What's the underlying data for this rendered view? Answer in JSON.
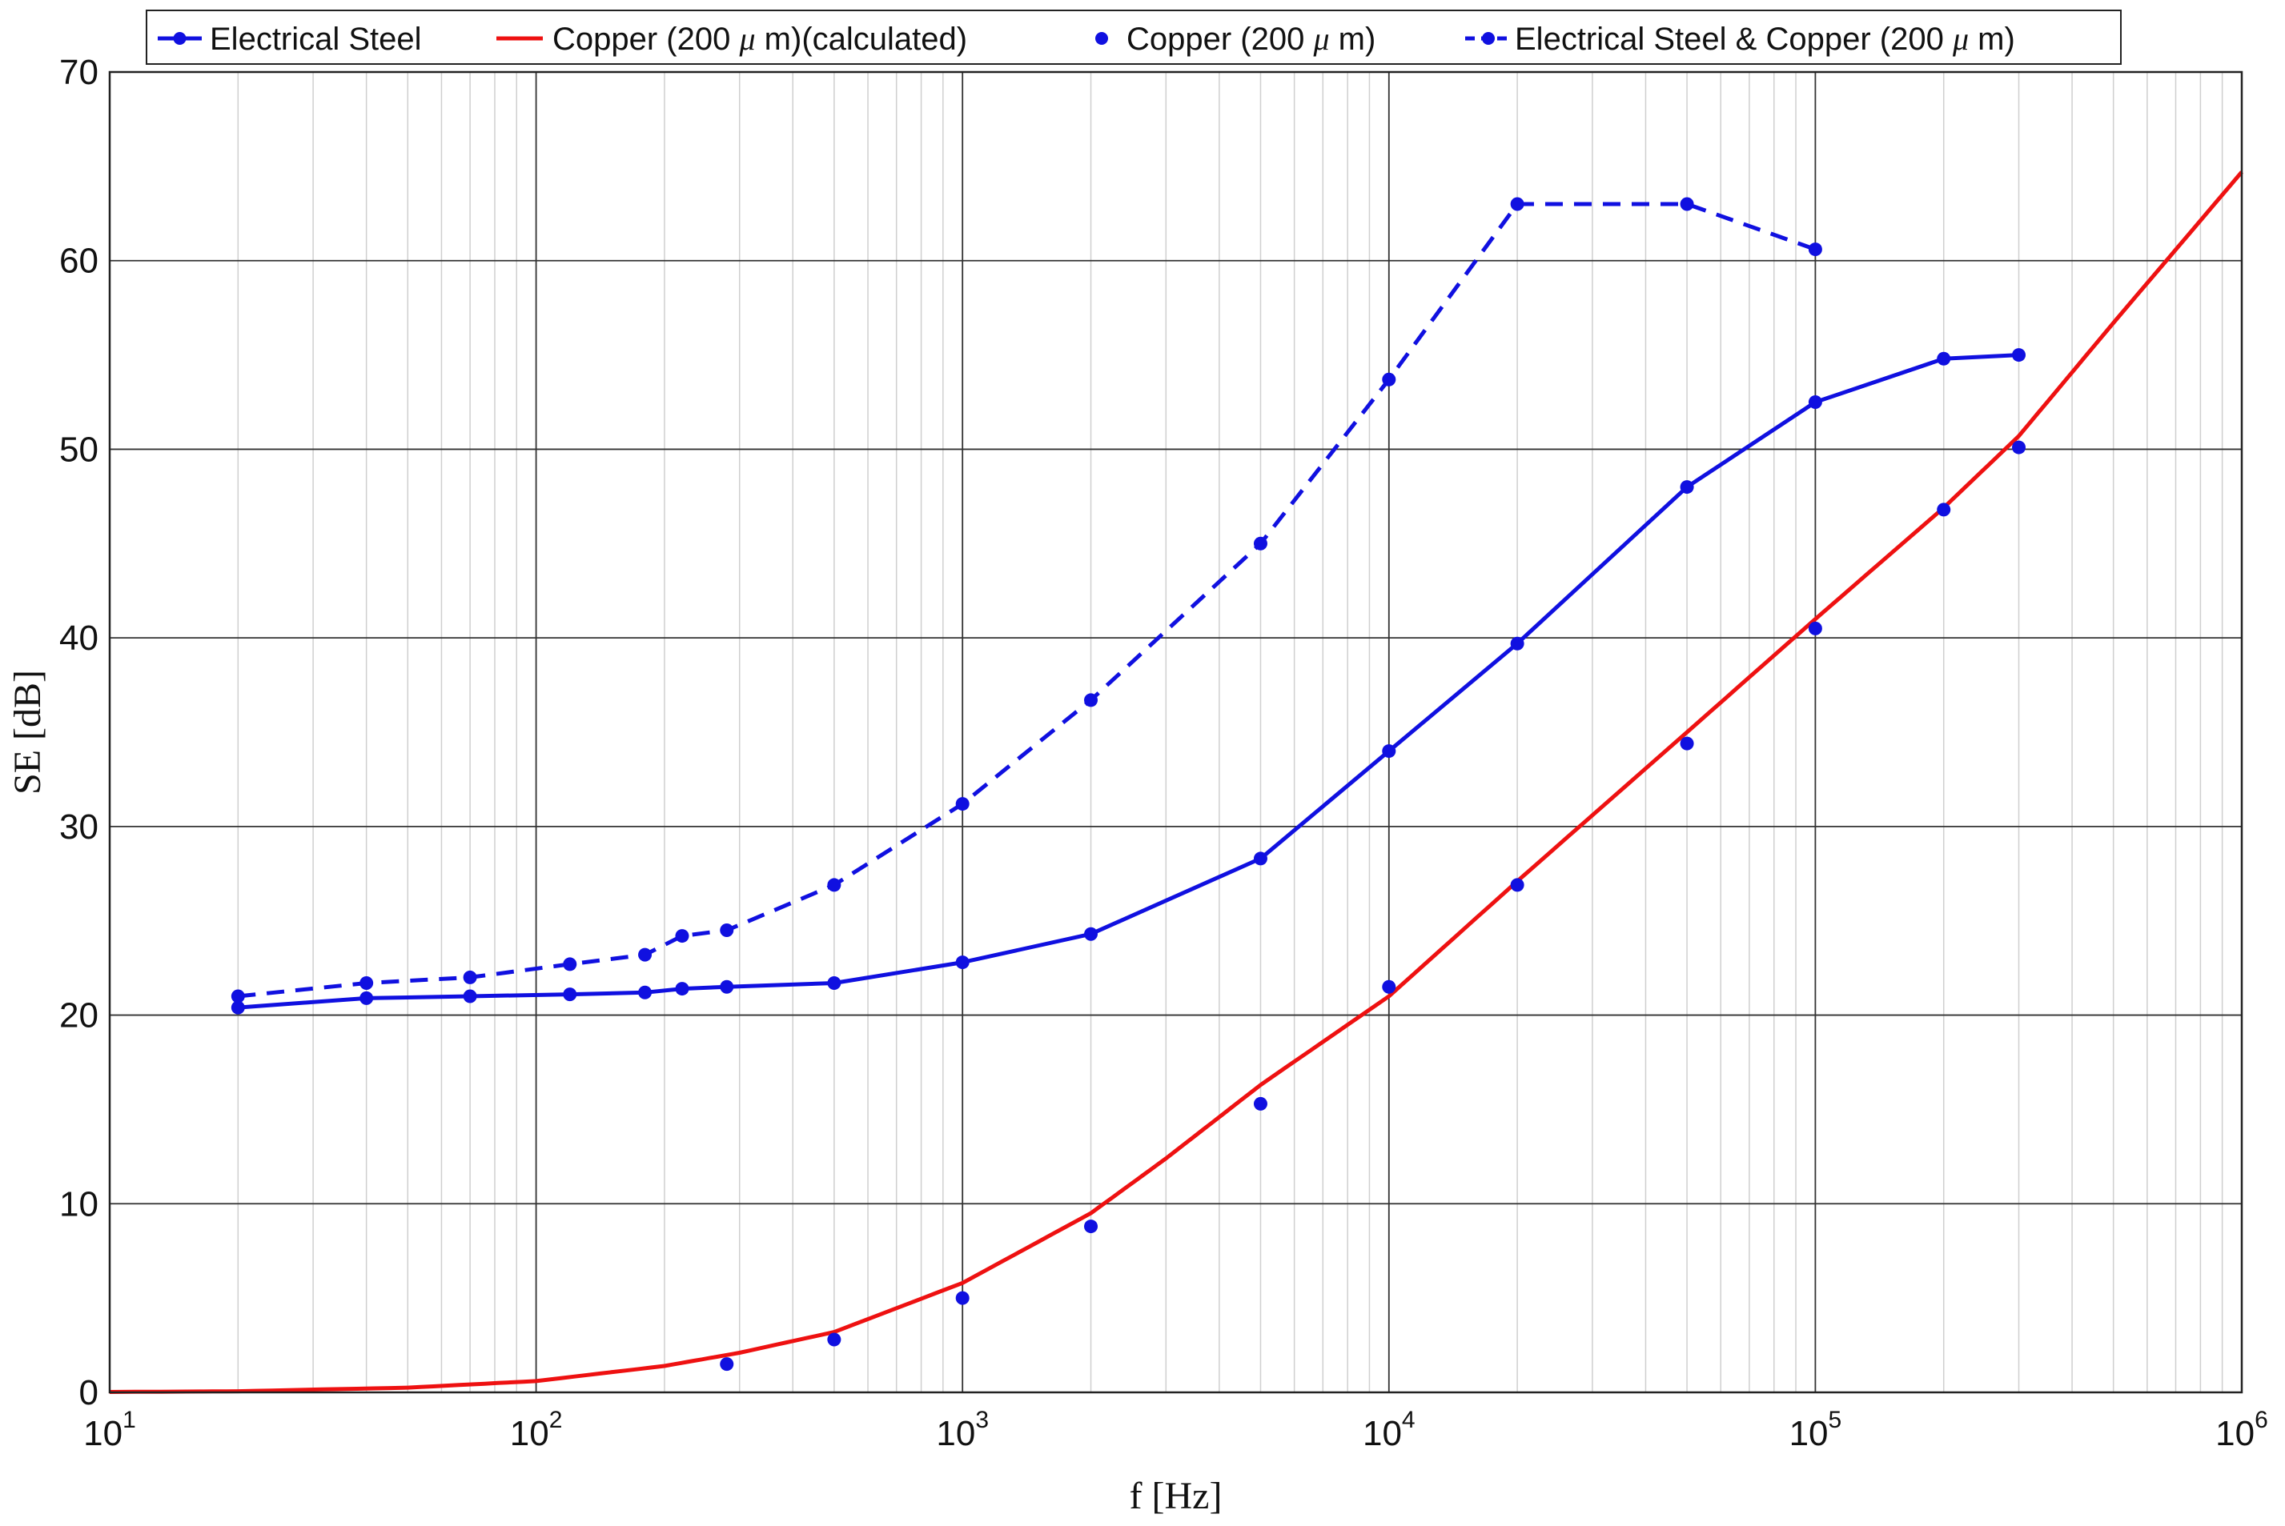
{
  "chart_data": {
    "type": "line",
    "xlabel": "f [Hz]",
    "ylabel": "SE [dB]",
    "xscale": "log",
    "xlim": [
      10,
      1000000
    ],
    "ylim": [
      0,
      70
    ],
    "x_ticks": [
      {
        "base": "10",
        "exp": "1"
      },
      {
        "base": "10",
        "exp": "2"
      },
      {
        "base": "10",
        "exp": "3"
      },
      {
        "base": "10",
        "exp": "4"
      },
      {
        "base": "10",
        "exp": "5"
      },
      {
        "base": "10",
        "exp": "6"
      }
    ],
    "y_ticks": [
      "0",
      "10",
      "20",
      "30",
      "40",
      "50",
      "60",
      "70"
    ],
    "grid": true,
    "legend_position": "top",
    "series": [
      {
        "name": "Electrical Steel",
        "color": "#1010e0",
        "line": "solid",
        "marker": "dot",
        "points": [
          [
            20,
            20.4
          ],
          [
            40,
            20.9
          ],
          [
            70,
            21.0
          ],
          [
            120,
            21.1
          ],
          [
            180,
            21.2
          ],
          [
            220,
            21.4
          ],
          [
            280,
            21.5
          ],
          [
            500,
            21.7
          ],
          [
            1000,
            22.8
          ],
          [
            2000,
            24.3
          ],
          [
            5000,
            28.3
          ],
          [
            10000,
            34.0
          ],
          [
            20000,
            39.7
          ],
          [
            50000,
            48.0
          ],
          [
            100000,
            52.5
          ],
          [
            200000,
            54.8
          ],
          [
            300000,
            55.0
          ]
        ]
      },
      {
        "name": "Copper (200 μ m)(calculated)",
        "color": "#ee1111",
        "line": "solid",
        "marker": "none",
        "points": [
          [
            10,
            0.02
          ],
          [
            20,
            0.06
          ],
          [
            50,
            0.25
          ],
          [
            100,
            0.6
          ],
          [
            200,
            1.4
          ],
          [
            300,
            2.1
          ],
          [
            500,
            3.2
          ],
          [
            1000,
            5.8
          ],
          [
            2000,
            9.5
          ],
          [
            3000,
            12.4
          ],
          [
            5000,
            16.3
          ],
          [
            10000,
            21.0
          ],
          [
            20000,
            27.1
          ],
          [
            50000,
            35.0
          ],
          [
            100000,
            41.0
          ],
          [
            200000,
            46.9
          ],
          [
            300000,
            50.7
          ],
          [
            500000,
            56.7
          ],
          [
            1000000,
            64.7
          ]
        ]
      },
      {
        "name": "Copper (200 μ m)",
        "color": "#1010e0",
        "line": "none",
        "marker": "dot",
        "points": [
          [
            280,
            1.5
          ],
          [
            500,
            2.8
          ],
          [
            1000,
            5.0
          ],
          [
            2000,
            8.8
          ],
          [
            5000,
            15.3
          ],
          [
            10000,
            21.5
          ],
          [
            20000,
            26.9
          ],
          [
            50000,
            34.4
          ],
          [
            100000,
            40.5
          ],
          [
            200000,
            46.8
          ],
          [
            300000,
            50.1
          ]
        ]
      },
      {
        "name": "Electrical Steel & Copper (200 μ m)",
        "color": "#1010e0",
        "line": "dashed",
        "marker": "dot",
        "points": [
          [
            20,
            21.0
          ],
          [
            40,
            21.7
          ],
          [
            70,
            22.0
          ],
          [
            120,
            22.7
          ],
          [
            180,
            23.2
          ],
          [
            220,
            24.2
          ],
          [
            280,
            24.5
          ],
          [
            500,
            26.9
          ],
          [
            1000,
            31.2
          ],
          [
            2000,
            36.7
          ],
          [
            5000,
            45.0
          ],
          [
            10000,
            53.7
          ],
          [
            20000,
            63.0
          ],
          [
            50000,
            63.0
          ],
          [
            100000,
            60.6
          ]
        ]
      }
    ],
    "legend": {
      "entries": [
        {
          "prefix": "Electrical Steel",
          "mu": "",
          "suffix": ""
        },
        {
          "prefix": "Copper (200 ",
          "mu": "μ",
          "suffix": " m)(calculated)"
        },
        {
          "prefix": "Copper (200 ",
          "mu": "μ",
          "suffix": " m)"
        },
        {
          "prefix": "Electrical Steel & Copper (200 ",
          "mu": "μ",
          "suffix": " m)"
        }
      ]
    }
  }
}
